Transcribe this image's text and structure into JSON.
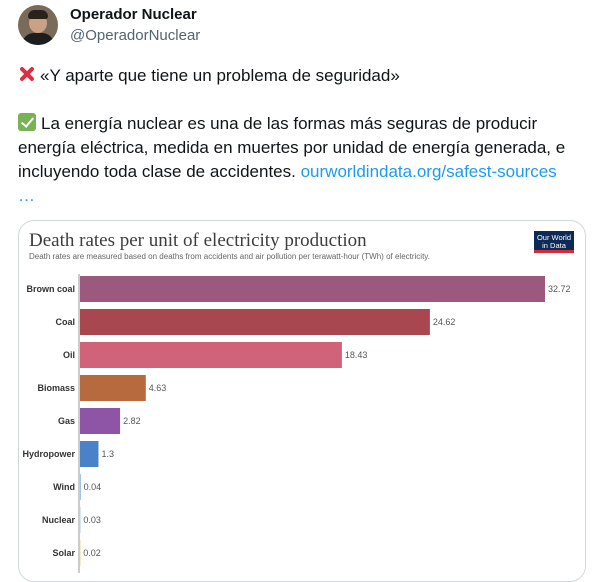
{
  "tweet": {
    "author_name": "Operador Nuclear",
    "author_handle": "@OperadorNuclear",
    "line1": "«Y aparte que tiene un problema de seguridad»",
    "line2_text": "La energía nuclear es una de las formas más seguras de producir energía eléctrica, medida en muertes por unidad de energía generada, e incluyendo toda clase de accidentes.",
    "link": "ourworldindata.org/safest-sources",
    "ellipsis": "…"
  },
  "icons": {
    "line1": "cross-mark-icon",
    "line2": "check-mark-icon"
  },
  "logo": {
    "line1": "Our World",
    "line2": "in Data"
  },
  "chart_data": {
    "type": "bar",
    "orientation": "horizontal",
    "title": "Death rates per unit of electricity production",
    "subtitle": "Death rates are measured based on deaths from accidents and air pollution per terawatt-hour (TWh) of electricity.",
    "categories": [
      "Brown coal",
      "Coal",
      "Oil",
      "Biomass",
      "Gas",
      "Hydropower",
      "Wind",
      "Nuclear",
      "Solar"
    ],
    "values": [
      32.72,
      24.62,
      18.43,
      4.63,
      2.82,
      1.3,
      0.04,
      0.03,
      0.02
    ],
    "value_labels": [
      "32.72",
      "24.62",
      "18.43",
      "4.63",
      "2.82",
      "1.3",
      "0.04",
      "0.03",
      "0.02"
    ],
    "colors": [
      "#9b5a7d",
      "#a8474f",
      "#d0627a",
      "#b86a3f",
      "#8e55a7",
      "#4a82c9",
      "#5a9bd5",
      "#9ac9d9",
      "#e0b640"
    ],
    "xlim": [
      0,
      32.72
    ],
    "grid": false
  }
}
